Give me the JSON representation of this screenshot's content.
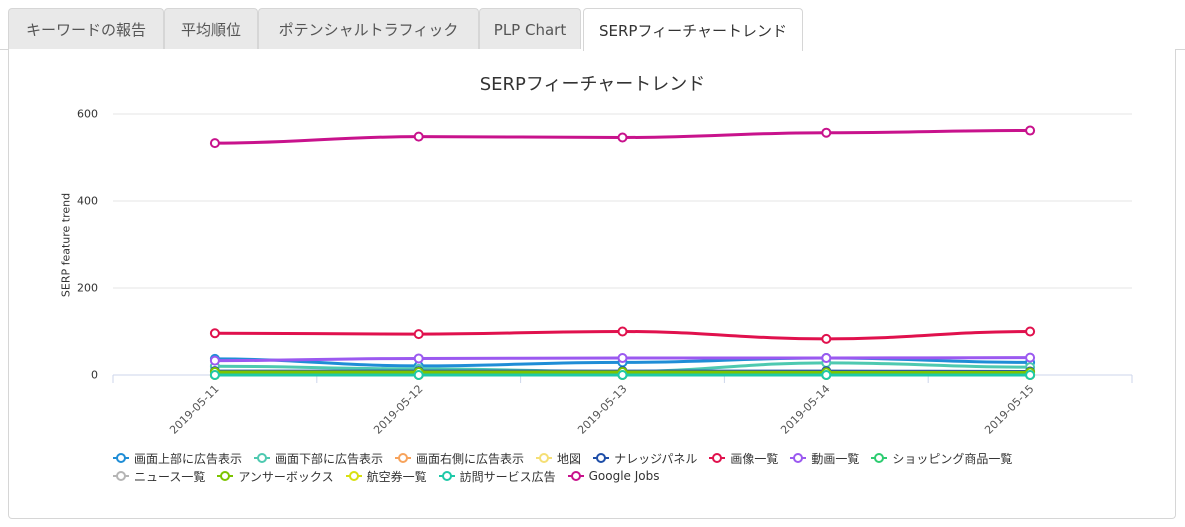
{
  "tabs": [
    {
      "label": "キーワードの報告",
      "active": false
    },
    {
      "label": "平均順位",
      "active": false
    },
    {
      "label": "ポテンシャルトラフィック",
      "active": false
    },
    {
      "label": "PLP Chart",
      "active": false
    },
    {
      "label": "SERPフィーチャートレンド",
      "active": true
    }
  ],
  "chart_data": {
    "type": "line",
    "title": "SERPフィーチャートレンド",
    "xlabel": "",
    "ylabel": "SERP feature trend",
    "ylim": [
      0,
      600
    ],
    "yticks": [
      "0",
      "200",
      "400",
      "600"
    ],
    "grid": true,
    "legend_position": "bottom",
    "x": [
      "2019-05-11",
      "2019-05-12",
      "2019-05-13",
      "2019-05-14",
      "2019-05-15"
    ],
    "series": [
      {
        "name": "画面上部に広告表示",
        "color": "#1f8dd6",
        "values": [
          37,
          21,
          29,
          39,
          29
        ]
      },
      {
        "name": "画面下部に広告表示",
        "color": "#4ec9b0",
        "values": [
          20,
          14,
          8,
          28,
          18
        ]
      },
      {
        "name": "画面右側に広告表示",
        "color": "#f7a35c",
        "values": [
          0,
          0,
          0,
          0,
          0
        ]
      },
      {
        "name": "地図",
        "color": "#f5df75",
        "values": [
          0,
          0,
          0,
          0,
          0
        ]
      },
      {
        "name": "ナレッジパネル",
        "color": "#1e4ea8",
        "values": [
          9,
          9,
          9,
          9,
          8
        ]
      },
      {
        "name": "画像一覧",
        "color": "#e0114d",
        "values": [
          96,
          94,
          100,
          83,
          100
        ]
      },
      {
        "name": "動画一覧",
        "color": "#9b59f0",
        "values": [
          33,
          38,
          39,
          39,
          40
        ]
      },
      {
        "name": "ショッピング商品一覧",
        "color": "#2ecc71",
        "values": [
          0,
          0,
          0,
          0,
          0
        ]
      },
      {
        "name": "ニュース一覧",
        "color": "#b5b5b5",
        "values": [
          0,
          0,
          0,
          0,
          0
        ]
      },
      {
        "name": "アンサーボックス",
        "color": "#7cc400",
        "values": [
          7,
          7,
          7,
          6,
          6
        ]
      },
      {
        "name": "航空券一覧",
        "color": "#d8e010",
        "values": [
          0,
          0,
          0,
          0,
          0
        ]
      },
      {
        "name": "訪問サービス広告",
        "color": "#1ec9a8",
        "values": [
          0,
          0,
          0,
          0,
          0
        ]
      },
      {
        "name": "Google Jobs",
        "color": "#c8128c",
        "values": [
          533,
          548,
          546,
          557,
          562
        ]
      }
    ]
  }
}
